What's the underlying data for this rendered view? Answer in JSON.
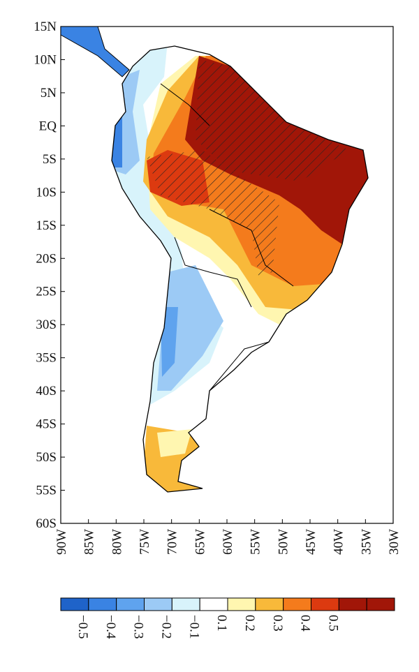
{
  "yticks": [
    {
      "value": 15,
      "label": "15N"
    },
    {
      "value": 10,
      "label": "10N"
    },
    {
      "value": 5,
      "label": "5N"
    },
    {
      "value": 0,
      "label": "EQ"
    },
    {
      "value": -5,
      "label": "5S"
    },
    {
      "value": -10,
      "label": "10S"
    },
    {
      "value": -15,
      "label": "15S"
    },
    {
      "value": -20,
      "label": "20S"
    },
    {
      "value": -25,
      "label": "25S"
    },
    {
      "value": -30,
      "label": "30S"
    },
    {
      "value": -35,
      "label": "35S"
    },
    {
      "value": -40,
      "label": "40S"
    },
    {
      "value": -45,
      "label": "45S"
    },
    {
      "value": -50,
      "label": "50S"
    },
    {
      "value": -55,
      "label": "55S"
    },
    {
      "value": -60,
      "label": "60S"
    }
  ],
  "ylim": [
    -60,
    15
  ],
  "xticks": [
    {
      "value": -90,
      "label": "90W"
    },
    {
      "value": -85,
      "label": "85W"
    },
    {
      "value": -80,
      "label": "80W"
    },
    {
      "value": -75,
      "label": "75W"
    },
    {
      "value": -70,
      "label": "70W"
    },
    {
      "value": -65,
      "label": "65W"
    },
    {
      "value": -60,
      "label": "60W"
    },
    {
      "value": -55,
      "label": "55W"
    },
    {
      "value": -50,
      "label": "50W"
    },
    {
      "value": -45,
      "label": "45W"
    },
    {
      "value": -40,
      "label": "40W"
    },
    {
      "value": -35,
      "label": "35W"
    },
    {
      "value": -30,
      "label": "30W"
    }
  ],
  "xlim": [
    -90,
    -30
  ],
  "colorbar": {
    "colors": [
      "#1f63c9",
      "#3a83e3",
      "#5fa3ee",
      "#9ccaf5",
      "#d8f3fb",
      "#ffffff",
      "#fff6b0",
      "#f8b93a",
      "#f47b1c",
      "#dc3a10",
      "#a11608"
    ],
    "extra_color": "#a11608",
    "labels": [
      {
        "value": -0.5,
        "label": "−0.5"
      },
      {
        "value": -0.4,
        "label": "−0.4"
      },
      {
        "value": -0.3,
        "label": "−0.3"
      },
      {
        "value": -0.2,
        "label": "−0.2"
      },
      {
        "value": -0.1,
        "label": "−0.1"
      },
      0.1,
      0.2,
      0.3,
      0.4,
      0.5
    ]
  }
}
